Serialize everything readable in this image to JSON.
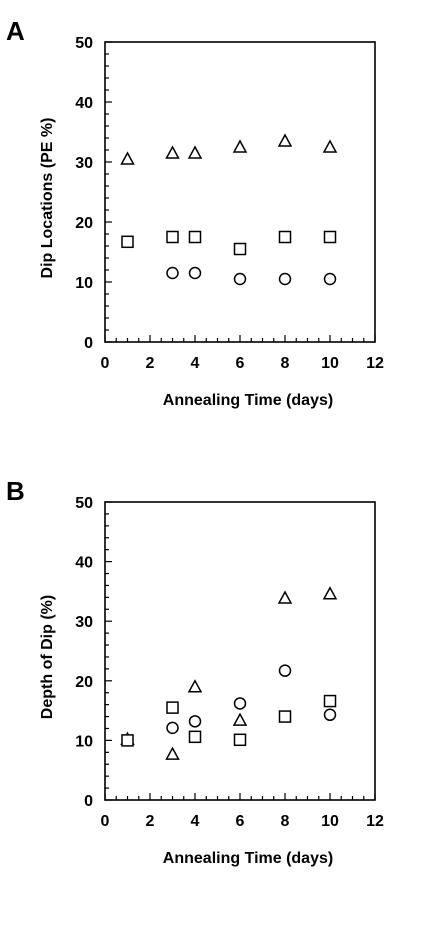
{
  "chart_data": [
    {
      "panel_label": "A",
      "type": "scatter",
      "xlabel": "Annealing Time (days)",
      "ylabel": "Dip Locations (PE %)",
      "xlim": [
        0,
        12
      ],
      "ylim": [
        0,
        50
      ],
      "x_major_ticks": [
        0,
        2,
        4,
        6,
        8,
        10,
        12
      ],
      "y_major_ticks": [
        0,
        10,
        20,
        30,
        40,
        50
      ],
      "grid": false,
      "legend": "none",
      "series": [
        {
          "marker": "triangle",
          "x": [
            1,
            3,
            4,
            6,
            8,
            10
          ],
          "y": [
            30.5,
            31.5,
            31.5,
            32.5,
            33.5,
            32.5
          ]
        },
        {
          "marker": "square",
          "x": [
            1,
            3,
            4,
            6,
            8,
            10
          ],
          "y": [
            16.7,
            17.5,
            17.5,
            15.5,
            17.5,
            17.5
          ]
        },
        {
          "marker": "circle",
          "x": [
            3,
            4,
            6,
            8,
            10
          ],
          "y": [
            11.5,
            11.5,
            10.5,
            10.5,
            10.5
          ]
        }
      ]
    },
    {
      "panel_label": "B",
      "type": "scatter",
      "xlabel": "Annealing Time (days)",
      "ylabel": "Depth of Dip (%)",
      "xlim": [
        0,
        12
      ],
      "ylim": [
        0,
        50
      ],
      "x_major_ticks": [
        0,
        2,
        4,
        6,
        8,
        10,
        12
      ],
      "y_major_ticks": [
        0,
        10,
        20,
        30,
        40,
        50
      ],
      "grid": false,
      "legend": "none",
      "series": [
        {
          "marker": "triangle",
          "x": [
            1,
            3,
            4,
            6,
            8,
            10
          ],
          "y": [
            10.2,
            7.7,
            19.0,
            13.4,
            33.9,
            34.6
          ]
        },
        {
          "marker": "square",
          "x": [
            1,
            3,
            4,
            6,
            8,
            10
          ],
          "y": [
            10.0,
            15.5,
            10.6,
            10.1,
            14.0,
            16.6
          ]
        },
        {
          "marker": "circle",
          "x": [
            3,
            4,
            6,
            8,
            10
          ],
          "y": [
            12.1,
            13.2,
            16.2,
            21.7,
            14.3
          ]
        }
      ]
    }
  ]
}
